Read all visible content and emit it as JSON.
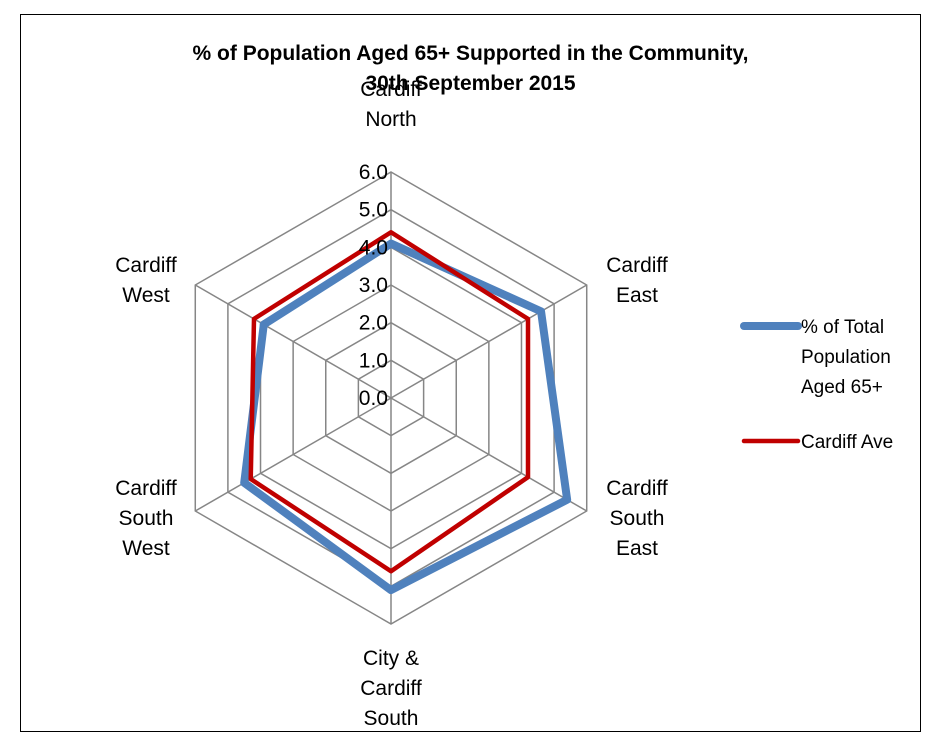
{
  "chart_data": {
    "type": "radar",
    "title_lines": [
      "% of Population Aged 65+ Supported in the Community,",
      "30th September 2015"
    ],
    "categories": [
      [
        "Cardiff",
        "North"
      ],
      [
        "Cardiff",
        "East"
      ],
      [
        "Cardiff",
        "South",
        "East"
      ],
      [
        "City &",
        "Cardiff",
        "South"
      ],
      [
        "Cardiff",
        "South",
        "West"
      ],
      [
        "Cardiff",
        "West"
      ]
    ],
    "axis": {
      "min": 0,
      "max": 6,
      "step": 1,
      "tick_labels": [
        "0.0",
        "1.0",
        "2.0",
        "3.0",
        "4.0",
        "5.0",
        "6.0"
      ]
    },
    "series": [
      {
        "name_lines": [
          "% of Total",
          "Population",
          "Aged 65+"
        ],
        "color": "#4F81BD",
        "values": [
          4.1,
          4.6,
          5.4,
          5.1,
          4.5,
          3.9
        ]
      },
      {
        "name_lines": [
          "Cardiff Ave"
        ],
        "color": "#C00000",
        "values": [
          4.4,
          4.2,
          4.2,
          4.6,
          4.3,
          4.2
        ]
      }
    ],
    "grid": true,
    "legend": "right",
    "grid_color": "#868686"
  }
}
